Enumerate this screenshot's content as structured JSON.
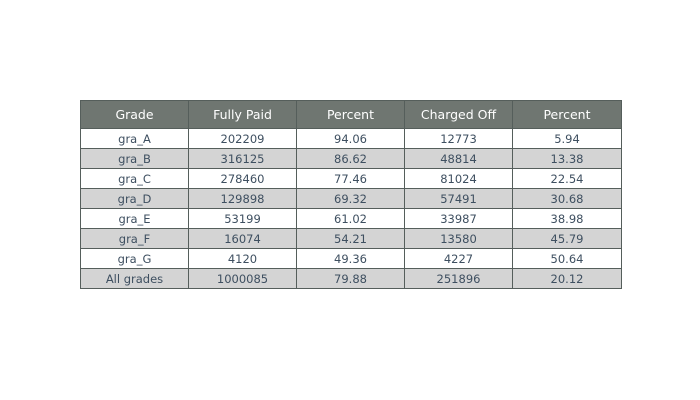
{
  "chart_data": {
    "type": "table",
    "columns": [
      "Grade",
      "Fully Paid",
      "Percent",
      "Charged Off",
      "Percent"
    ],
    "rows": [
      [
        "gra_A",
        "202209",
        "94.06",
        "12773",
        "5.94"
      ],
      [
        "gra_B",
        "316125",
        "86.62",
        "48814",
        "13.38"
      ],
      [
        "gra_C",
        "278460",
        "77.46",
        "81024",
        "22.54"
      ],
      [
        "gra_D",
        "129898",
        "69.32",
        "57491",
        "30.68"
      ],
      [
        "gra_E",
        "53199",
        "61.02",
        "33987",
        "38.98"
      ],
      [
        "gra_F",
        "16074",
        "54.21",
        "13580",
        "45.79"
      ],
      [
        "gra_G",
        "4120",
        "49.36",
        "4227",
        "50.64"
      ],
      [
        "All grades",
        "1000085",
        "79.88",
        "251896",
        "20.12"
      ]
    ],
    "colors": {
      "header_bg": "#6f7671",
      "header_text": "#ffffff",
      "band": "#d4d4d4",
      "text": "#3e4f60"
    }
  }
}
